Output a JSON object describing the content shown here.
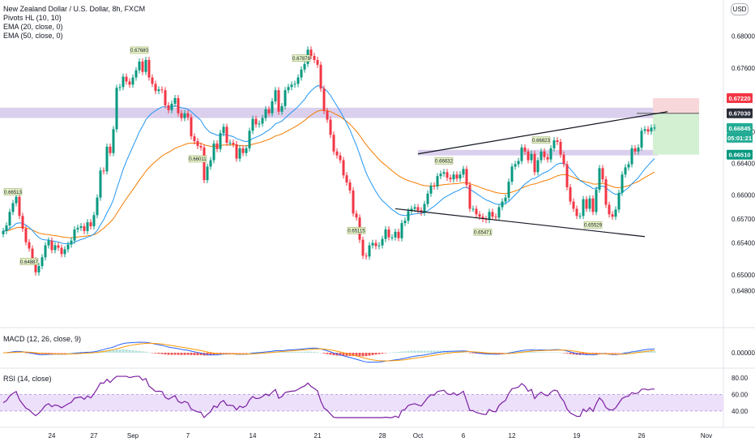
{
  "header": {
    "symbol_title": "New Zealand Dollar / U.S. Dollar, 8h, FXCM",
    "indicators": [
      "Pivots HL (10, 10)",
      "EMA (20, close, 0)",
      "EMA (50, close, 0)"
    ],
    "currency_button": "USD"
  },
  "macd_pane": {
    "title": "MACD (12, 26, close, 9)",
    "axis_label": "0.00000"
  },
  "rsi_pane": {
    "title": "RSI (14, close)",
    "axis_labels": [
      "80.00",
      "60.00",
      "40.00"
    ]
  },
  "price_tags": [
    {
      "label": "0.67220",
      "color": "#f23645",
      "text_color": "#ffffff"
    },
    {
      "label": "0.67030",
      "color": "#2a2e39",
      "text_color": "#ffffff"
    },
    {
      "label": "0.66845",
      "color": "#22ab94",
      "text_color": "#ffffff"
    },
    {
      "label": "05:01:21",
      "color": "#22ab94",
      "text_color": "#ffffff"
    },
    {
      "label": "0.66510",
      "color": "#089981",
      "text_color": "#ffffff"
    }
  ],
  "chart_data": {
    "type": "candlestick",
    "title": "New Zealand Dollar / U.S. Dollar, 8h, FXCM",
    "y_axis_labels": [
      "0.68000",
      "0.67600",
      "0.66800",
      "0.66400",
      "0.66000",
      "0.65700",
      "0.65400",
      "0.65000",
      "0.64800"
    ],
    "x_axis_labels": [
      "24",
      "27",
      "Sep",
      "7",
      "14",
      "21",
      "28",
      "Oct",
      "6",
      "12",
      "19",
      "26",
      "Nov"
    ],
    "ylim": [
      0.6455,
      0.6825
    ],
    "close": [
      0.6555,
      0.6562,
      0.6579,
      0.659,
      0.6598,
      0.6574,
      0.6558,
      0.6541,
      0.6533,
      0.6518,
      0.6503,
      0.6511,
      0.6522,
      0.6537,
      0.6543,
      0.6531,
      0.6537,
      0.6534,
      0.6526,
      0.6532,
      0.6538,
      0.6543,
      0.6557,
      0.6559,
      0.6561,
      0.6555,
      0.6566,
      0.6561,
      0.6575,
      0.6597,
      0.6631,
      0.663,
      0.6661,
      0.6653,
      0.6683,
      0.6735,
      0.6736,
      0.6749,
      0.6743,
      0.6739,
      0.6748,
      0.6757,
      0.6768,
      0.6755,
      0.677,
      0.6748,
      0.674,
      0.6731,
      0.6733,
      0.6732,
      0.6713,
      0.6707,
      0.6715,
      0.6722,
      0.6703,
      0.6697,
      0.6703,
      0.6698,
      0.6674,
      0.6668,
      0.6662,
      0.666,
      0.6619,
      0.6636,
      0.6644,
      0.6665,
      0.6658,
      0.6678,
      0.6686,
      0.6666,
      0.6666,
      0.6664,
      0.6646,
      0.6659,
      0.6653,
      0.6659,
      0.6681,
      0.6696,
      0.6689,
      0.669,
      0.6697,
      0.6708,
      0.6703,
      0.6718,
      0.6732,
      0.6705,
      0.6712,
      0.6732,
      0.6736,
      0.6739,
      0.674,
      0.6748,
      0.6758,
      0.6765,
      0.6783,
      0.6775,
      0.677,
      0.6764,
      0.6734,
      0.6706,
      0.6695,
      0.6676,
      0.6655,
      0.665,
      0.6644,
      0.6625,
      0.6616,
      0.6606,
      0.6577,
      0.6572,
      0.6544,
      0.6524,
      0.6523,
      0.6537,
      0.654,
      0.6536,
      0.6537,
      0.6545,
      0.6557,
      0.6547,
      0.6547,
      0.6554,
      0.6546,
      0.6565,
      0.6568,
      0.658,
      0.6583,
      0.6585,
      0.6581,
      0.6578,
      0.6589,
      0.6602,
      0.6612,
      0.6611,
      0.6624,
      0.6627,
      0.6629,
      0.6622,
      0.662,
      0.6626,
      0.6621,
      0.6626,
      0.6633,
      0.6613,
      0.6583,
      0.6583,
      0.6576,
      0.6573,
      0.657,
      0.6569,
      0.6579,
      0.6573,
      0.6572,
      0.6585,
      0.6592,
      0.6597,
      0.6617,
      0.6636,
      0.6639,
      0.6643,
      0.666,
      0.6655,
      0.6644,
      0.6652,
      0.6629,
      0.6644,
      0.6655,
      0.6648,
      0.6645,
      0.6659,
      0.6669,
      0.6667,
      0.6651,
      0.6639,
      0.661,
      0.6592,
      0.6583,
      0.6574,
      0.6574,
      0.6595,
      0.6583,
      0.6596,
      0.6579,
      0.6607,
      0.6634,
      0.662,
      0.6588,
      0.6576,
      0.6573,
      0.6582,
      0.6603,
      0.6626,
      0.6635,
      0.6639,
      0.6659,
      0.6655,
      0.666,
      0.6681,
      0.6683,
      0.668,
      0.6685,
      0.6685
    ],
    "open_offset_hint": "open = previous close",
    "series": [
      {
        "name": "EMA (20, close, 0)",
        "color": "#2196f3"
      },
      {
        "name": "EMA (50, close, 0)",
        "color": "#f57c00"
      }
    ],
    "pivot_labels": [
      {
        "text": "0.66513",
        "color": "#e7f5c8"
      },
      {
        "text": "0.64887",
        "color": "#e7f5c8"
      },
      {
        "text": "0.67680",
        "color": "#e7f5c8"
      },
      {
        "text": "0.66011",
        "color": "#e7f5c8"
      },
      {
        "text": "0.67878",
        "color": "#e7f5c8"
      },
      {
        "text": "0.65115",
        "color": "#e7f5c8"
      },
      {
        "text": "0.66632",
        "color": "#e7f5c8"
      },
      {
        "text": "0.65471",
        "color": "#e7f5c8"
      },
      {
        "text": "0.66823",
        "color": "#e7f5c8"
      },
      {
        "text": "0.65529",
        "color": "#e7f5c8"
      }
    ],
    "zones": [
      {
        "name": "resistance-zone",
        "from": 0.6697,
        "to": 0.671,
        "color": "#d1c4e9"
      },
      {
        "name": "support-zone",
        "from": 0.665,
        "to": 0.6657,
        "color": "#d1c4e9"
      }
    ],
    "trendlines": [
      {
        "name": "upper-trendline",
        "from": [
          "Oct",
          0.6652
        ],
        "to": [
          "26",
          0.6705
        ]
      },
      {
        "name": "lower-trendline",
        "from": [
          "28",
          0.6583
        ],
        "to": [
          "26",
          0.6548
        ]
      }
    ],
    "position": {
      "entry": 0.6703,
      "target_top": 0.6722,
      "stop_bottom": 0.6651
    },
    "macd": {
      "zero_label": "0.00000",
      "signal_color": "#ff9800",
      "macd_color": "#2962ff"
    },
    "rsi": {
      "levels": [
        80,
        60,
        40
      ],
      "band": [
        40,
        60
      ],
      "line_color": "#7b1fa2",
      "band_color": "#ede0fb"
    }
  }
}
